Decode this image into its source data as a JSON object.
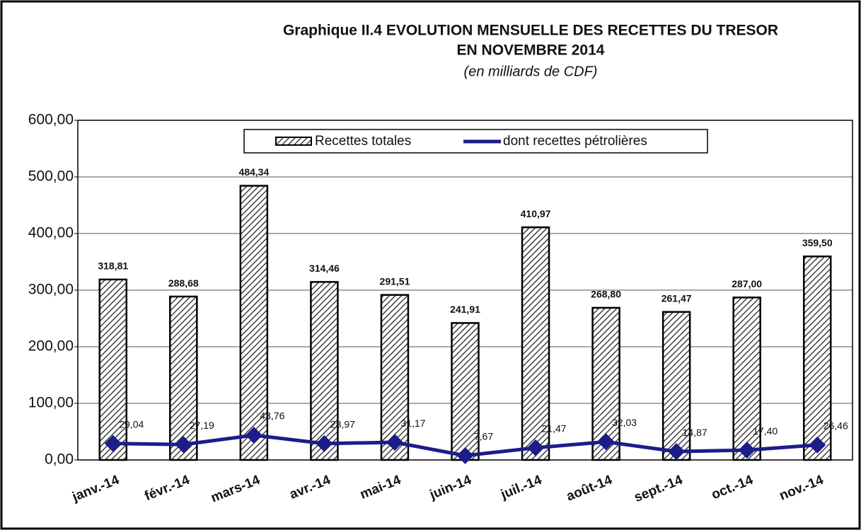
{
  "chart_data": {
    "type": "bar",
    "title": "Graphique II.4   EVOLUTION MENSUELLE DES RECETTES DU TRESOR",
    "title_line2": "EN NOVEMBRE 2014",
    "subtitle": "(en milliards de CDF)",
    "categories": [
      "janv.-14",
      "févr.-14",
      "mars-14",
      "avr.-14",
      "mai-14",
      "juin-14",
      "juil.-14",
      "août-14",
      "sept.-14",
      "oct.-14",
      "nov.-14"
    ],
    "series": [
      {
        "name": "Recettes totales",
        "type": "bar",
        "color": "#222222",
        "values": [
          318.81,
          288.68,
          484.34,
          314.46,
          291.51,
          241.91,
          410.97,
          268.8,
          261.47,
          287.0,
          359.5
        ],
        "value_labels": [
          "318,81",
          "288,68",
          "484,34",
          "314,46",
          "291,51",
          "241,91",
          "410,97",
          "268,80",
          "261,47",
          "287,00",
          "359,50"
        ]
      },
      {
        "name": "dont recettes pétrolières",
        "type": "line",
        "color": "#1c1c8a",
        "values": [
          29.04,
          27.19,
          43.76,
          28.97,
          31.17,
          7.67,
          21.47,
          32.03,
          14.87,
          17.4,
          26.46
        ],
        "value_labels": [
          "29,04",
          "27,19",
          "43,76",
          "28,97",
          "31,17",
          "7,67",
          "21,47",
          "32,03",
          "14,87",
          "17,40",
          "26,46"
        ]
      }
    ],
    "ylim": [
      0,
      600
    ],
    "yticks": [
      {
        "value": 0,
        "label": "0,00"
      },
      {
        "value": 100,
        "label": "100,00"
      },
      {
        "value": 200,
        "label": "200,00"
      },
      {
        "value": 300,
        "label": "300,00"
      },
      {
        "value": 400,
        "label": "400,00"
      },
      {
        "value": 500,
        "label": "500,00"
      },
      {
        "value": 600,
        "label": "600,00"
      }
    ],
    "grid": true,
    "legend": "top"
  }
}
